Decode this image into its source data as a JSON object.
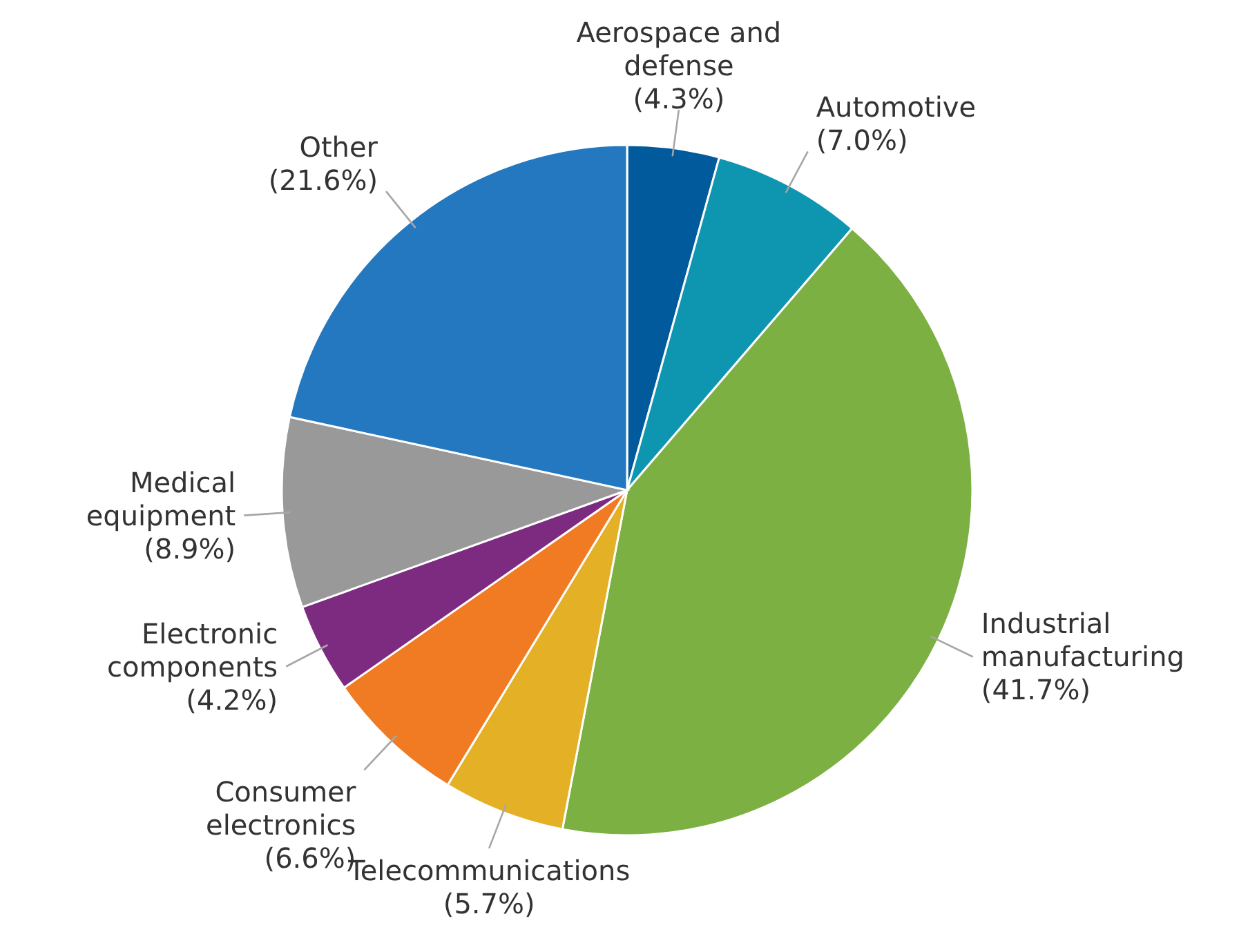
{
  "chart_data": {
    "type": "pie",
    "categories": [
      "Aerospace and defense",
      "Automotive",
      "Industrial manufacturing",
      "Telecommunications",
      "Consumer electronics",
      "Electronic components",
      "Medical equipment",
      "Other"
    ],
    "values": [
      4.3,
      7.0,
      41.7,
      5.7,
      6.6,
      4.2,
      8.9,
      21.6
    ],
    "colors": [
      "#005a9c",
      "#0e95b0",
      "#7cb042",
      "#e3b026",
      "#f07b22",
      "#7d2b80",
      "#999999",
      "#2478bf"
    ],
    "value_labels": [
      "(4.3%)",
      "(7.0%)",
      "(41.7%)",
      "(5.7%)",
      "(6.6%)",
      "(4.2%)",
      "(8.9%)",
      "(21.6%)"
    ]
  }
}
